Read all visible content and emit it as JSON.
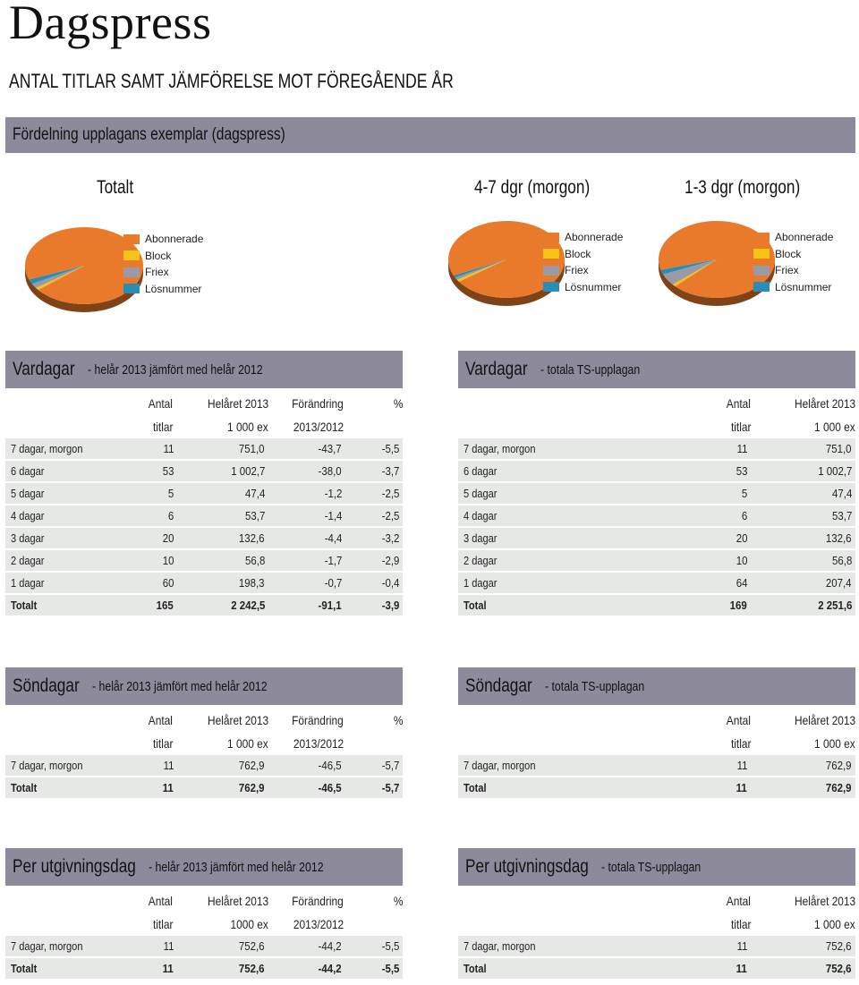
{
  "title": "Dagspress",
  "subtitle": "ANTAL TITLAR SAMT JÄMFÖRELSE MOT FÖREGÅENDE ÅR",
  "distribution": {
    "band_title": "Fördelning upplagans exemplar (dagspress)",
    "legend": [
      "Abonnerade",
      "Block",
      "Friex",
      "Lösnummer"
    ],
    "legend_colors": [
      "#e97a2c",
      "#f7c316",
      "#9a99a6",
      "#2a8db5"
    ],
    "pies": [
      {
        "title": "Totalt",
        "values": [
          95.0,
          1.0,
          2.0,
          2.0
        ]
      },
      {
        "title": "4-7 dgr (morgon)",
        "values": [
          97.0,
          1.0,
          1.0,
          1.0
        ]
      },
      {
        "title": "1-3 dgr (morgon)",
        "values": [
          92.0,
          1.0,
          5.0,
          2.0
        ]
      }
    ]
  },
  "sections": [
    {
      "left": {
        "title": "Vardagar",
        "subtitle": "- helår 2013 jämfört med helår 2012",
        "headers1": [
          "Antal",
          "Helåret 2013",
          "Förändring",
          "%"
        ],
        "headers2": [
          "titlar",
          "1 000 ex",
          "2013/2012",
          ""
        ],
        "rows": [
          [
            "7 dagar, morgon",
            "11",
            "751,0",
            "-43,7",
            "-5,5"
          ],
          [
            "6 dagar",
            "53",
            "1 002,7",
            "-38,0",
            "-3,7"
          ],
          [
            "5 dagar",
            "5",
            "47,4",
            "-1,2",
            "-2,5"
          ],
          [
            "4 dagar",
            "6",
            "53,7",
            "-1,4",
            "-2,5"
          ],
          [
            "3 dagar",
            "20",
            "132,6",
            "-4,4",
            "-3,2"
          ],
          [
            "2 dagar",
            "10",
            "56,8",
            "-1,7",
            "-2,9"
          ],
          [
            "1 dagar",
            "60",
            "198,3",
            "-0,7",
            "-0,4"
          ],
          [
            "Totalt",
            "165",
            "2 242,5",
            "-91,1",
            "-3,9"
          ]
        ]
      },
      "right": {
        "title": "Vardagar",
        "subtitle": "- totala TS-upplagan",
        "headers1": [
          "Antal",
          "Helåret 2013"
        ],
        "headers2": [
          "titlar",
          "1 000 ex"
        ],
        "rows": [
          [
            "7 dagar, morgon",
            "11",
            "751,0"
          ],
          [
            "6 dagar",
            "53",
            "1 002,7"
          ],
          [
            "5 dagar",
            "5",
            "47,4"
          ],
          [
            "4 dagar",
            "6",
            "53,7"
          ],
          [
            "3 dagar",
            "20",
            "132,6"
          ],
          [
            "2 dagar",
            "10",
            "56,8"
          ],
          [
            "1 dagar",
            "64",
            "207,4"
          ],
          [
            "Total",
            "169",
            "2 251,6"
          ]
        ]
      }
    },
    {
      "left": {
        "title": "Söndagar",
        "subtitle": "- helår 2013 jämfört med helår 2012",
        "headers1": [
          "Antal",
          "Helåret 2013",
          "Förändring",
          "%"
        ],
        "headers2": [
          "titlar",
          "1 000 ex",
          "2013/2012",
          ""
        ],
        "rows": [
          [
            "7 dagar, morgon",
            "11",
            "762,9",
            "-46,5",
            "-5,7"
          ],
          [
            "Totalt",
            "11",
            "762,9",
            "-46,5",
            "-5,7"
          ]
        ]
      },
      "right": {
        "title": "Söndagar",
        "subtitle": "- totala TS-upplagan",
        "headers1": [
          "Antal",
          "Helåret 2013"
        ],
        "headers2": [
          "titlar",
          "1 000 ex"
        ],
        "rows": [
          [
            "7 dagar, morgon",
            "11",
            "762,9"
          ],
          [
            "Total",
            "11",
            "762,9"
          ]
        ]
      }
    },
    {
      "left": {
        "title": "Per utgivningsdag",
        "subtitle": "- helår 2013 jämfört med helår 2012",
        "headers1": [
          "Antal",
          "Helåret 2013",
          "Förändring",
          "%"
        ],
        "headers2": [
          "titlar",
          "1000 ex",
          "2013/2012",
          ""
        ],
        "rows": [
          [
            "7 dagar, morgon",
            "11",
            "752,6",
            "-44,2",
            "-5,5"
          ],
          [
            "Totalt",
            "11",
            "752,6",
            "-44,2",
            "-5,5"
          ]
        ]
      },
      "right": {
        "title": "Per utgivningsdag",
        "subtitle": "- totala TS-upplagan",
        "headers1": [
          "Antal",
          "Helåret 2013"
        ],
        "headers2": [
          "titlar",
          "1 000 ex"
        ],
        "rows": [
          [
            "7 dagar, morgon",
            "11",
            "752,6"
          ],
          [
            "Total",
            "11",
            "752,6"
          ]
        ]
      }
    }
  ]
}
